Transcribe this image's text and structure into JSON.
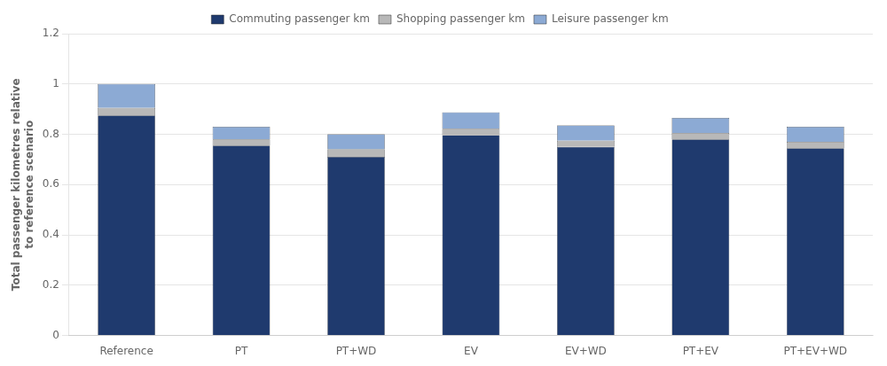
{
  "chart_data": {
    "type": "bar",
    "stacked": true,
    "categories": [
      "Reference",
      "PT",
      "PT+WD",
      "EV",
      "EV+WD",
      "PT+EV",
      "PT+EV+WD"
    ],
    "series": [
      {
        "name": "Commuting passenger km",
        "color": "#1F3A6E",
        "values": [
          0.875,
          0.755,
          0.71,
          0.797,
          0.75,
          0.78,
          0.745
        ]
      },
      {
        "name": "Shopping passenger km",
        "color": "#B8B8B8",
        "values": [
          0.03,
          0.025,
          0.03,
          0.025,
          0.025,
          0.025,
          0.025
        ]
      },
      {
        "name": "Leisure passenger km",
        "color": "#8CAAD4",
        "values": [
          0.095,
          0.05,
          0.06,
          0.065,
          0.06,
          0.06,
          0.06
        ]
      }
    ],
    "ylabel": "Total passenger kilometres relative\nto reference scenario",
    "ylim": [
      0,
      1.2
    ],
    "yticks": [
      0,
      0.2,
      0.4,
      0.6,
      0.8,
      1,
      1.2
    ],
    "grid": true,
    "legend": "top"
  }
}
